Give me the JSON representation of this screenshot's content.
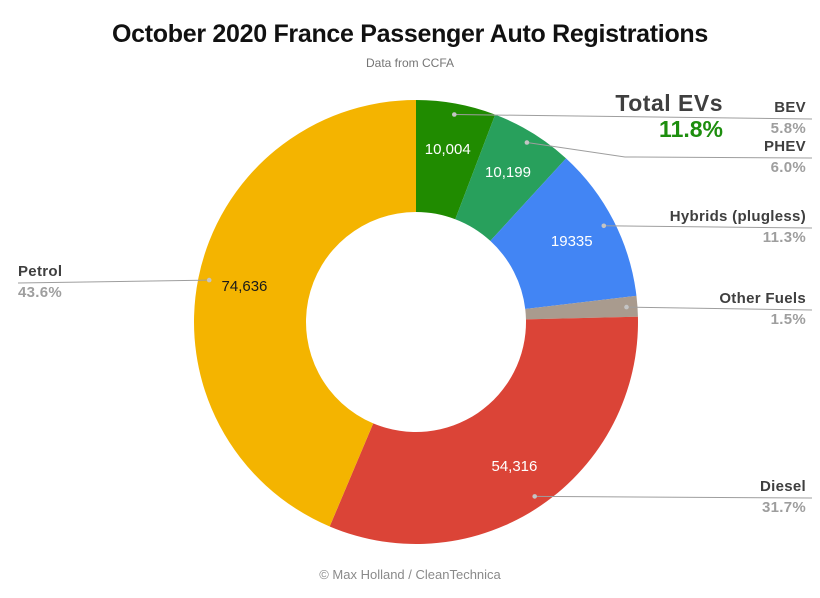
{
  "page": {
    "title": "October 2020 France Passenger Auto Registrations",
    "subtitle": "Data from CCFA",
    "credit": "© Max Holland / CleanTechnica"
  },
  "total_evs": {
    "label": "Total EVs",
    "pct_label": "11.8%"
  },
  "colors": {
    "title": "#111111",
    "subtitle_gray": "#757575",
    "label_dark": "#3f3f3f",
    "label_gray": "#9e9e9e",
    "total_evs_green": "#1d8e0e",
    "leader_line": "#9e9e9e",
    "anchor_dot": "#c4c4c4",
    "background": "#ffffff"
  },
  "chart_data": {
    "type": "pie",
    "subtype": "donut",
    "title": "October 2020 France Passenger Auto Registrations",
    "source_note": "Data from CCFA",
    "start_angle_deg": 0,
    "direction": "clockwise",
    "legend_position": "callouts",
    "slices": [
      {
        "name": "BEV",
        "value": 10004,
        "value_label": "10,004",
        "pct": 5.8,
        "pct_label": "5.8%",
        "color": "#208b00",
        "value_label_color": "#ffffff"
      },
      {
        "name": "PHEV",
        "value": 10199,
        "value_label": "10,199",
        "pct": 6.0,
        "pct_label": "6.0%",
        "color": "#28a05c",
        "value_label_color": "#ffffff"
      },
      {
        "name": "Hybrids (plugless)",
        "value": 19335,
        "value_label": "19335",
        "pct": 11.3,
        "pct_label": "11.3%",
        "color": "#4285f4",
        "value_label_color": "#ffffff"
      },
      {
        "name": "Other Fuels",
        "value_label": "",
        "pct": 1.5,
        "pct_label": "1.5%",
        "color": "#a99b8e",
        "value_label_color": "#ffffff"
      },
      {
        "name": "Diesel",
        "value": 54316,
        "value_label": "54,316",
        "pct": 31.7,
        "pct_label": "31.7%",
        "color": "#db4437",
        "value_label_color": "#ffffff"
      },
      {
        "name": "Petrol",
        "value": 74636,
        "value_label": "74,636",
        "pct": 43.6,
        "pct_label": "43.6%",
        "color": "#f4b400",
        "value_label_color": "#1a1a1a"
      }
    ],
    "annotation": {
      "label": "Total EVs",
      "pct_label": "11.8%",
      "includes": [
        "BEV",
        "PHEV"
      ]
    }
  }
}
